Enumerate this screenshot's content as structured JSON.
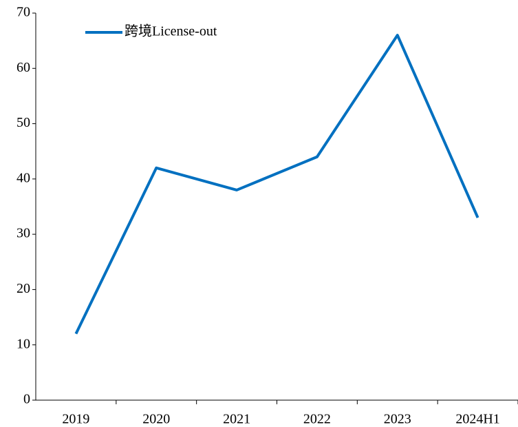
{
  "chart_data": {
    "type": "line",
    "categories": [
      "2019",
      "2020",
      "2021",
      "2022",
      "2023",
      "2024H1"
    ],
    "series": [
      {
        "name": "跨境License-out",
        "color": "#0070c0",
        "values": [
          12,
          42,
          38,
          44,
          66,
          33
        ]
      }
    ],
    "ylim": [
      0,
      70
    ],
    "yticks": [
      0,
      10,
      20,
      30,
      40,
      50,
      60,
      70
    ],
    "grid": false,
    "legend": "top-left"
  }
}
